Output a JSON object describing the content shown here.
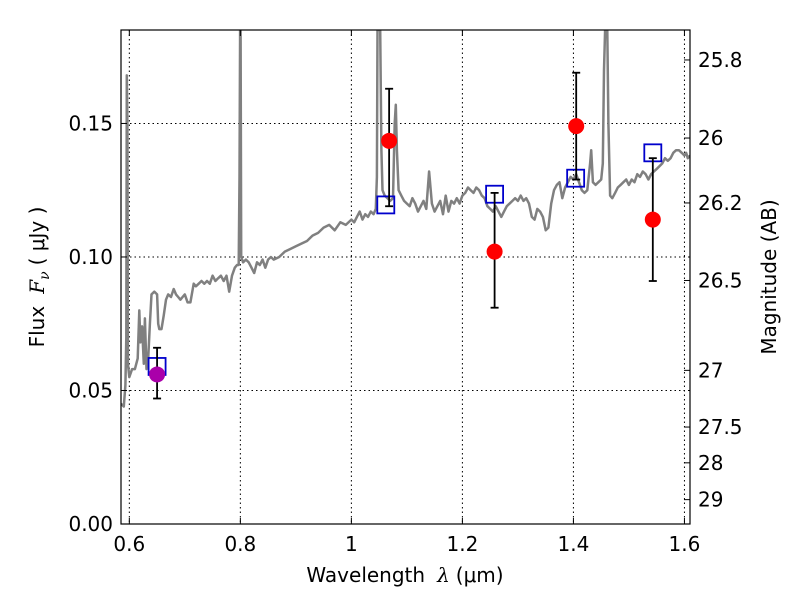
{
  "chart_data": {
    "type": "scatter",
    "xlabel_main": "Wavelength",
    "xlabel_symbol": "λ",
    "xlabel_unit": "(μm)",
    "ylabel_main": "Flux",
    "ylabel_symbol": "F",
    "ylabel_sub": "ν",
    "ylabel_unit": "( μJy )",
    "y2label": "Magnitude (AB)",
    "xlim": [
      0.585,
      1.61
    ],
    "ylim": [
      0.0,
      0.185
    ],
    "grid": true,
    "x_ticks": [
      {
        "value": 0.6,
        "label": "0.6"
      },
      {
        "value": 0.8,
        "label": "0.8"
      },
      {
        "value": 1.0,
        "label": "1"
      },
      {
        "value": 1.2,
        "label": "1.2"
      },
      {
        "value": 1.4,
        "label": "1.4"
      },
      {
        "value": 1.6,
        "label": "1.6"
      }
    ],
    "y_ticks": [
      {
        "value": 0.0,
        "label": "0.00"
      },
      {
        "value": 0.05,
        "label": "0.05"
      },
      {
        "value": 0.1,
        "label": "0.10"
      },
      {
        "value": 0.15,
        "label": "0.15"
      }
    ],
    "y2_ticks": [
      {
        "value": 25.8,
        "label": "25.8"
      },
      {
        "value": 26.0,
        "label": "26"
      },
      {
        "value": 26.2,
        "label": "26.2"
      },
      {
        "value": 26.5,
        "label": "26.5"
      },
      {
        "value": 27.0,
        "label": "27"
      },
      {
        "value": 27.5,
        "label": "27.5"
      },
      {
        "value": 28.0,
        "label": "28"
      },
      {
        "value": 29.0,
        "label": "29"
      }
    ],
    "colors": {
      "model": "#808080",
      "observed": "#ff0000",
      "observed_first": "#aa00aa",
      "synthetic": "#0000cc",
      "errorbar": "#000000"
    },
    "model_spectrum": [
      [
        0.585,
        0.045
      ],
      [
        0.59,
        0.044
      ],
      [
        0.593,
        0.052
      ],
      [
        0.5945,
        0.07
      ],
      [
        0.5955,
        0.168
      ],
      [
        0.5965,
        0.15
      ],
      [
        0.5975,
        0.06
      ],
      [
        0.6,
        0.055
      ],
      [
        0.605,
        0.058
      ],
      [
        0.61,
        0.058
      ],
      [
        0.615,
        0.062
      ],
      [
        0.618,
        0.08
      ],
      [
        0.62,
        0.068
      ],
      [
        0.623,
        0.074
      ],
      [
        0.626,
        0.06
      ],
      [
        0.628,
        0.077
      ],
      [
        0.631,
        0.058
      ],
      [
        0.634,
        0.062
      ],
      [
        0.637,
        0.075
      ],
      [
        0.64,
        0.086
      ],
      [
        0.645,
        0.087
      ],
      [
        0.65,
        0.086
      ],
      [
        0.652,
        0.075
      ],
      [
        0.654,
        0.073
      ],
      [
        0.658,
        0.073
      ],
      [
        0.662,
        0.078
      ],
      [
        0.666,
        0.084
      ],
      [
        0.67,
        0.086
      ],
      [
        0.675,
        0.085
      ],
      [
        0.68,
        0.088
      ],
      [
        0.684,
        0.086
      ],
      [
        0.688,
        0.085
      ],
      [
        0.692,
        0.084
      ],
      [
        0.696,
        0.085
      ],
      [
        0.7,
        0.086
      ],
      [
        0.705,
        0.083
      ],
      [
        0.71,
        0.083
      ],
      [
        0.716,
        0.09
      ],
      [
        0.72,
        0.089
      ],
      [
        0.725,
        0.09
      ],
      [
        0.73,
        0.091
      ],
      [
        0.735,
        0.09
      ],
      [
        0.74,
        0.091
      ],
      [
        0.745,
        0.09
      ],
      [
        0.75,
        0.093
      ],
      [
        0.755,
        0.091
      ],
      [
        0.76,
        0.092
      ],
      [
        0.765,
        0.093
      ],
      [
        0.77,
        0.091
      ],
      [
        0.775,
        0.093
      ],
      [
        0.78,
        0.087
      ],
      [
        0.785,
        0.093
      ],
      [
        0.79,
        0.096
      ],
      [
        0.794,
        0.097
      ],
      [
        0.797,
        0.097
      ],
      [
        0.7985,
        0.13
      ],
      [
        0.7995,
        0.185
      ],
      [
        0.8005,
        0.185
      ],
      [
        0.8015,
        0.1
      ],
      [
        0.805,
        0.098
      ],
      [
        0.81,
        0.099
      ],
      [
        0.815,
        0.098
      ],
      [
        0.82,
        0.096
      ],
      [
        0.825,
        0.094
      ],
      [
        0.83,
        0.098
      ],
      [
        0.835,
        0.097
      ],
      [
        0.84,
        0.099
      ],
      [
        0.845,
        0.096
      ],
      [
        0.85,
        0.099
      ],
      [
        0.855,
        0.1
      ],
      [
        0.86,
        0.099
      ],
      [
        0.87,
        0.1
      ],
      [
        0.88,
        0.102
      ],
      [
        0.89,
        0.103
      ],
      [
        0.9,
        0.104
      ],
      [
        0.91,
        0.105
      ],
      [
        0.92,
        0.106
      ],
      [
        0.93,
        0.108
      ],
      [
        0.94,
        0.109
      ],
      [
        0.95,
        0.111
      ],
      [
        0.96,
        0.112
      ],
      [
        0.97,
        0.11
      ],
      [
        0.98,
        0.113
      ],
      [
        0.99,
        0.112
      ],
      [
        1.0,
        0.114
      ],
      [
        1.005,
        0.113
      ],
      [
        1.01,
        0.115
      ],
      [
        1.015,
        0.117
      ],
      [
        1.02,
        0.114
      ],
      [
        1.025,
        0.116
      ],
      [
        1.03,
        0.115
      ],
      [
        1.035,
        0.117
      ],
      [
        1.04,
        0.116
      ],
      [
        1.044,
        0.118
      ],
      [
        1.046,
        0.13
      ],
      [
        1.047,
        0.185
      ],
      [
        1.052,
        0.185
      ],
      [
        1.054,
        0.14
      ],
      [
        1.056,
        0.125
      ],
      [
        1.06,
        0.123
      ],
      [
        1.065,
        0.122
      ],
      [
        1.07,
        0.121
      ],
      [
        1.075,
        0.122
      ],
      [
        1.078,
        0.15
      ],
      [
        1.08,
        0.157
      ],
      [
        1.082,
        0.14
      ],
      [
        1.085,
        0.125
      ],
      [
        1.09,
        0.123
      ],
      [
        1.095,
        0.121
      ],
      [
        1.1,
        0.12
      ],
      [
        1.105,
        0.119
      ],
      [
        1.11,
        0.122
      ],
      [
        1.115,
        0.12
      ],
      [
        1.12,
        0.117
      ],
      [
        1.125,
        0.119
      ],
      [
        1.13,
        0.121
      ],
      [
        1.135,
        0.118
      ],
      [
        1.14,
        0.132
      ],
      [
        1.145,
        0.12
      ],
      [
        1.15,
        0.117
      ],
      [
        1.155,
        0.119
      ],
      [
        1.16,
        0.121
      ],
      [
        1.165,
        0.116
      ],
      [
        1.17,
        0.123
      ],
      [
        1.175,
        0.117
      ],
      [
        1.18,
        0.121
      ],
      [
        1.185,
        0.12
      ],
      [
        1.19,
        0.122
      ],
      [
        1.195,
        0.12
      ],
      [
        1.2,
        0.123
      ],
      [
        1.205,
        0.124
      ],
      [
        1.21,
        0.126
      ],
      [
        1.215,
        0.125
      ],
      [
        1.22,
        0.124
      ],
      [
        1.225,
        0.126
      ],
      [
        1.23,
        0.125
      ],
      [
        1.235,
        0.123
      ],
      [
        1.24,
        0.122
      ],
      [
        1.245,
        0.119
      ],
      [
        1.25,
        0.118
      ],
      [
        1.255,
        0.117
      ],
      [
        1.26,
        0.119
      ],
      [
        1.265,
        0.117
      ],
      [
        1.27,
        0.115
      ],
      [
        1.275,
        0.117
      ],
      [
        1.28,
        0.119
      ],
      [
        1.285,
        0.12
      ],
      [
        1.29,
        0.121
      ],
      [
        1.295,
        0.122
      ],
      [
        1.3,
        0.121
      ],
      [
        1.305,
        0.123
      ],
      [
        1.31,
        0.121
      ],
      [
        1.315,
        0.122
      ],
      [
        1.32,
        0.12
      ],
      [
        1.325,
        0.115
      ],
      [
        1.33,
        0.114
      ],
      [
        1.335,
        0.118
      ],
      [
        1.34,
        0.117
      ],
      [
        1.345,
        0.115
      ],
      [
        1.35,
        0.11
      ],
      [
        1.355,
        0.111
      ],
      [
        1.36,
        0.12
      ],
      [
        1.365,
        0.125
      ],
      [
        1.37,
        0.127
      ],
      [
        1.375,
        0.128
      ],
      [
        1.38,
        0.122
      ],
      [
        1.385,
        0.126
      ],
      [
        1.39,
        0.128
      ],
      [
        1.395,
        0.13
      ],
      [
        1.4,
        0.129
      ],
      [
        1.405,
        0.131
      ],
      [
        1.41,
        0.128
      ],
      [
        1.415,
        0.125
      ],
      [
        1.42,
        0.124
      ],
      [
        1.425,
        0.125
      ],
      [
        1.43,
        0.135
      ],
      [
        1.432,
        0.14
      ],
      [
        1.435,
        0.128
      ],
      [
        1.44,
        0.127
      ],
      [
        1.445,
        0.128
      ],
      [
        1.45,
        0.129
      ],
      [
        1.453,
        0.135
      ],
      [
        1.455,
        0.17
      ],
      [
        1.457,
        0.185
      ],
      [
        1.461,
        0.185
      ],
      [
        1.463,
        0.15
      ],
      [
        1.466,
        0.123
      ],
      [
        1.47,
        0.122
      ],
      [
        1.475,
        0.124
      ],
      [
        1.48,
        0.126
      ],
      [
        1.485,
        0.127
      ],
      [
        1.49,
        0.128
      ],
      [
        1.495,
        0.129
      ],
      [
        1.5,
        0.127
      ],
      [
        1.505,
        0.129
      ],
      [
        1.51,
        0.128
      ],
      [
        1.515,
        0.131
      ],
      [
        1.52,
        0.13
      ],
      [
        1.525,
        0.132
      ],
      [
        1.53,
        0.131
      ],
      [
        1.535,
        0.129
      ],
      [
        1.54,
        0.131
      ],
      [
        1.545,
        0.132
      ],
      [
        1.55,
        0.133
      ],
      [
        1.555,
        0.134
      ],
      [
        1.56,
        0.135
      ],
      [
        1.565,
        0.137
      ],
      [
        1.57,
        0.136
      ],
      [
        1.575,
        0.137
      ],
      [
        1.58,
        0.139
      ],
      [
        1.585,
        0.14
      ],
      [
        1.59,
        0.14
      ],
      [
        1.595,
        0.139
      ],
      [
        1.6,
        0.138
      ],
      [
        1.603,
        0.139
      ],
      [
        1.606,
        0.137
      ],
      [
        1.61,
        0.138
      ]
    ],
    "observed_points": [
      {
        "x": 0.65,
        "y": 0.056,
        "yerr": [
          0.047,
          0.066
        ]
      },
      {
        "x": 1.068,
        "y": 0.1435,
        "yerr": [
          0.119,
          0.163
        ]
      },
      {
        "x": 1.258,
        "y": 0.102,
        "yerr": [
          0.081,
          0.124
        ]
      },
      {
        "x": 1.405,
        "y": 0.149,
        "yerr": [
          0.129,
          0.169
        ]
      },
      {
        "x": 1.543,
        "y": 0.114,
        "yerr": [
          0.091,
          0.137
        ]
      }
    ],
    "synthetic_points": [
      {
        "x": 0.65,
        "y": 0.059
      },
      {
        "x": 1.062,
        "y": 0.1195
      },
      {
        "x": 1.258,
        "y": 0.1235
      },
      {
        "x": 1.404,
        "y": 0.1295
      },
      {
        "x": 1.543,
        "y": 0.139
      }
    ]
  }
}
